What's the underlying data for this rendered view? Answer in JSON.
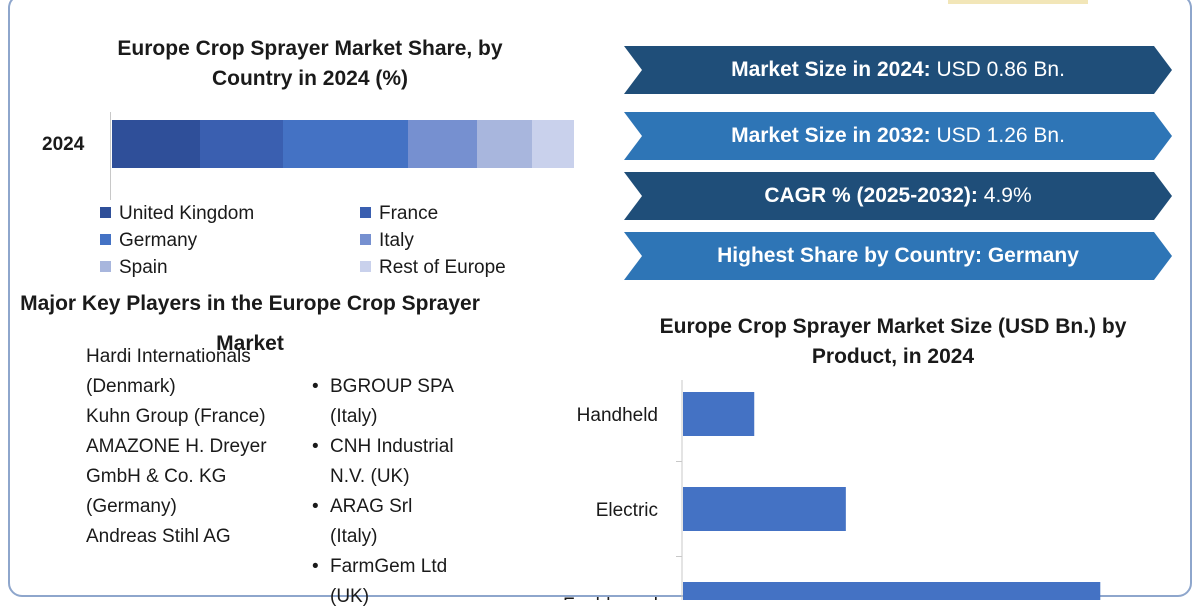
{
  "chart_data": [
    {
      "type": "bar",
      "orientation": "horizontal",
      "stacked": true,
      "title": "Europe Crop Sprayer Market Share, by Country in 2024 (%)",
      "categories": [
        "2024"
      ],
      "series": [
        {
          "name": "United Kingdom",
          "values": [
            19
          ],
          "color": "#2f4f99"
        },
        {
          "name": "France",
          "values": [
            18
          ],
          "color": "#3a5fb0"
        },
        {
          "name": "Germany",
          "values": [
            27
          ],
          "color": "#4472c4"
        },
        {
          "name": "Italy",
          "values": [
            15
          ],
          "color": "#7690d0"
        },
        {
          "name": "Spain",
          "values": [
            12
          ],
          "color": "#a8b6dd"
        },
        {
          "name": "Rest of Europe",
          "values": [
            9
          ],
          "color": "#c9d1ec"
        }
      ],
      "legend_position": "bottom",
      "grid": false
    },
    {
      "type": "bar",
      "orientation": "horizontal",
      "title": "Europe Crop Sprayer Market Size (USD Bn.) by Product, in 2024",
      "categories": [
        "Handheld",
        "Electric",
        "Fuel-based"
      ],
      "values": [
        0.07,
        0.16,
        0.41
      ],
      "color": "#4472c4",
      "xlim": [
        0,
        0.45
      ],
      "grid": false
    }
  ],
  "banners": [
    {
      "bold": "Market Size in 2024:",
      "text": " USD 0.86 Bn.",
      "color": "#1f4e79"
    },
    {
      "bold": "Market Size in 2032:",
      "text": " USD 1.26 Bn.",
      "color": "#2e75b6"
    },
    {
      "bold": "CAGR % (2025-2032):",
      "text": " 4.9%",
      "color": "#1f4e79"
    },
    {
      "bold": "Highest Share by Country: Germany",
      "text": "",
      "color": "#2e75b6"
    }
  ],
  "players": {
    "title": "Major Key Players in the Europe Crop Sprayer Market",
    "left": [
      "Hardi Internationals (Denmark)",
      "Kuhn Group (France)",
      "AMAZONE H. Dreyer GmbH & Co. KG (Germany)",
      "Andreas Stihl AG"
    ],
    "right": [
      [
        "BGROUP SPA",
        "(Italy)"
      ],
      [
        "CNH Industrial",
        "N.V. (UK)"
      ],
      [
        "ARAG Srl",
        "(Italy)"
      ],
      [
        "FarmGem Ltd",
        "(UK)"
      ]
    ]
  }
}
